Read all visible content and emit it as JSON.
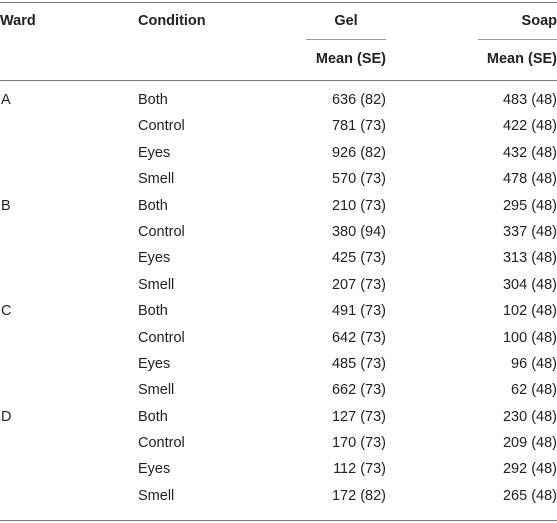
{
  "header": {
    "ward": "Ward",
    "condition": "Condition",
    "gel": "Gel",
    "soap": "Soap",
    "gel_sub": "Mean (SE)",
    "soap_sub": "Mean (SE)"
  },
  "rows": [
    {
      "ward": "A",
      "condition": "Both",
      "gel": "636 (82)",
      "soap": "483 (48)"
    },
    {
      "ward": "",
      "condition": "Control",
      "gel": "781 (73)",
      "soap": "422 (48)"
    },
    {
      "ward": "",
      "condition": "Eyes",
      "gel": "926 (82)",
      "soap": "432 (48)"
    },
    {
      "ward": "",
      "condition": "Smell",
      "gel": "570 (73)",
      "soap": "478 (48)"
    },
    {
      "ward": "B",
      "condition": "Both",
      "gel": "210 (73)",
      "soap": "295 (48)"
    },
    {
      "ward": "",
      "condition": "Control",
      "gel": "380 (94)",
      "soap": "337 (48)"
    },
    {
      "ward": "",
      "condition": "Eyes",
      "gel": "425 (73)",
      "soap": "313 (48)"
    },
    {
      "ward": "",
      "condition": "Smell",
      "gel": "207 (73)",
      "soap": "304 (48)"
    },
    {
      "ward": "C",
      "condition": "Both",
      "gel": "491 (73)",
      "soap": "102 (48)"
    },
    {
      "ward": "",
      "condition": "Control",
      "gel": "642 (73)",
      "soap": "100 (48)"
    },
    {
      "ward": "",
      "condition": "Eyes",
      "gel": "485 (73)",
      "soap": "96 (48)"
    },
    {
      "ward": "",
      "condition": "Smell",
      "gel": "662 (73)",
      "soap": "62 (48)"
    },
    {
      "ward": "D",
      "condition": "Both",
      "gel": "127 (73)",
      "soap": "230 (48)"
    },
    {
      "ward": "",
      "condition": "Control",
      "gel": "170 (73)",
      "soap": "209 (48)"
    },
    {
      "ward": "",
      "condition": "Eyes",
      "gel": "112 (73)",
      "soap": "292 (48)"
    },
    {
      "ward": "",
      "condition": "Smell",
      "gel": "172 (82)",
      "soap": "265 (48)"
    }
  ]
}
